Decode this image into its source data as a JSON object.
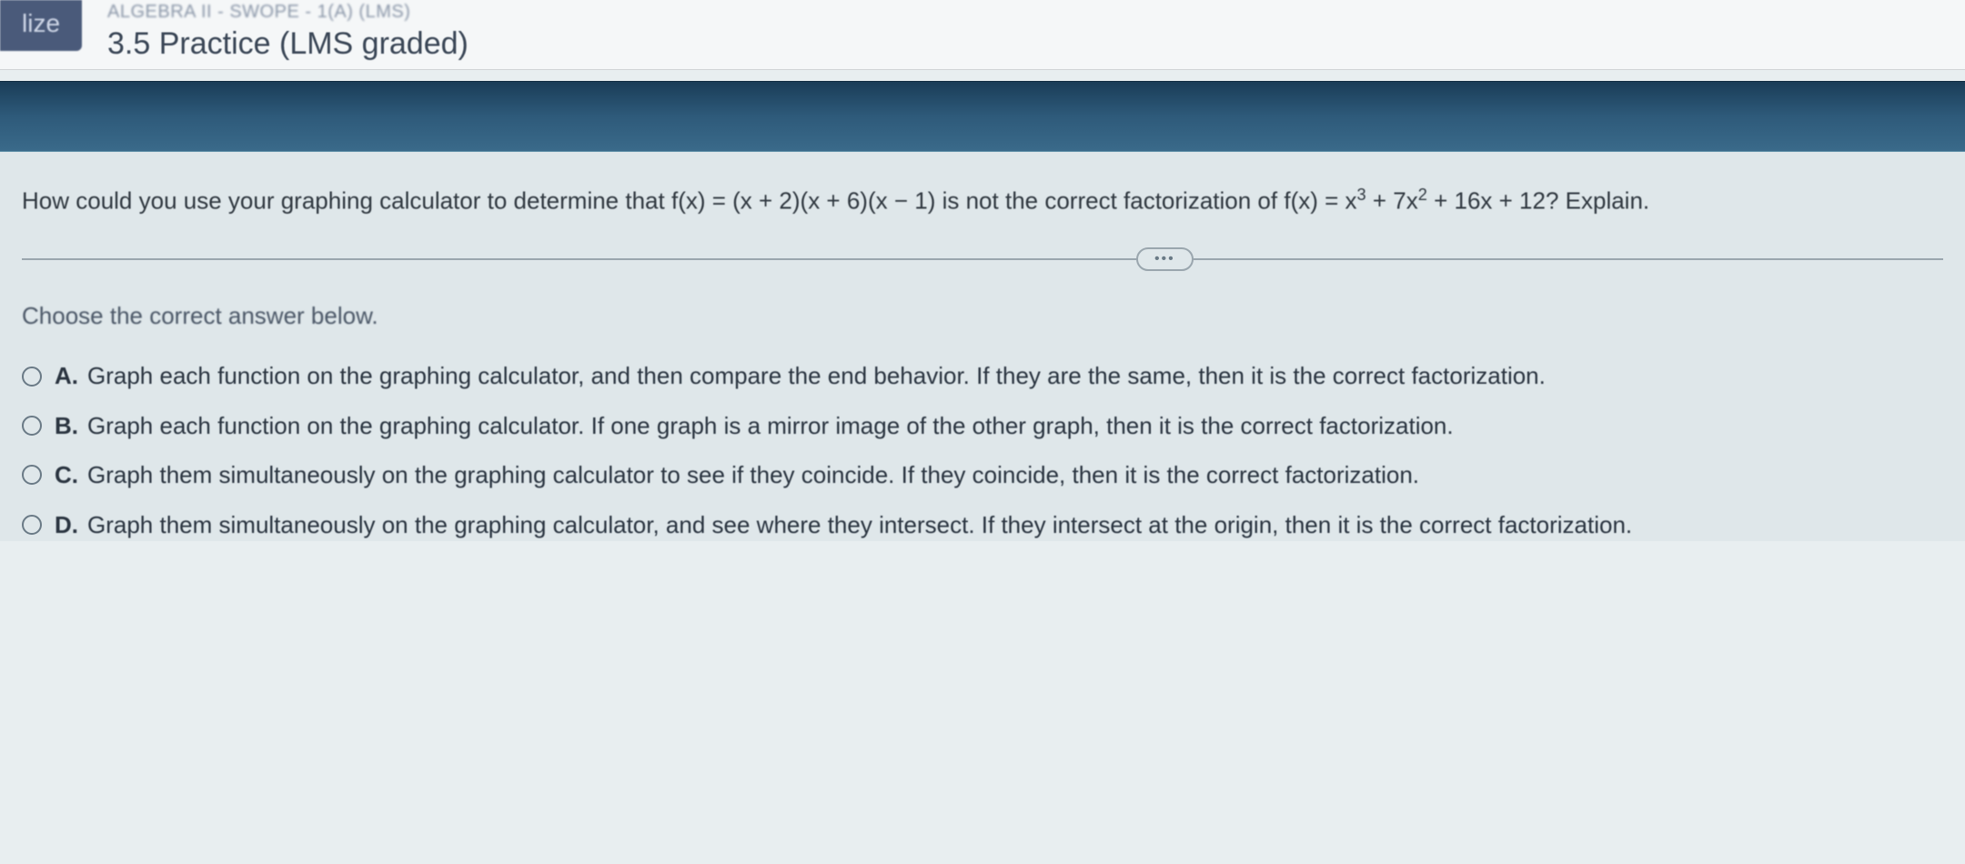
{
  "header": {
    "badge": "lize",
    "course_line": "ALGEBRA II - SWOPE - 1(A) (LMS)",
    "practice_line": "3.5 Practice (LMS graded)"
  },
  "question": {
    "prefix": "How could you use your graphing calculator to determine that ",
    "fx1_a": "f(x) = (x + 2)(x + 6)(x − 1)",
    "mid": " is not the correct factorization of ",
    "fx2_a": "f(x) = x",
    "fx2_exp1": "3",
    "fx2_b": " + 7x",
    "fx2_exp2": "2",
    "fx2_c": " + 16x + 12? Explain."
  },
  "divider_dots": "•••",
  "choose_text": "Choose the correct answer below.",
  "options": {
    "a": {
      "letter": "A.",
      "text": "Graph each function on the graphing calculator, and then compare the end behavior. If they are the same, then it is the correct factorization."
    },
    "b": {
      "letter": "B.",
      "text": "Graph each function on the graphing calculator. If one graph is a mirror image of the other graph, then it is the correct factorization."
    },
    "c": {
      "letter": "C.",
      "text": "Graph them simultaneously on the graphing calculator to see if they coincide. If they coincide, then it is the correct factorization."
    },
    "d": {
      "letter": "D.",
      "text": "Graph them simultaneously on the graphing calculator, and see where they intersect. If they intersect at the origin, then it is the correct factorization."
    }
  },
  "colors": {
    "banner_top": "#1a3d58",
    "banner_bottom": "#3a6a8a",
    "badge_bg": "#4a5a7a",
    "page_bg": "#dfe7ea"
  }
}
